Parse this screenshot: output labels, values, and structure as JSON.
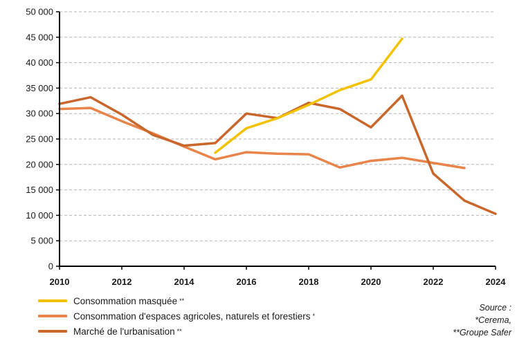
{
  "chart_data": {
    "type": "line",
    "title": "",
    "xlabel": "",
    "ylabel": "",
    "xlim": [
      2010,
      2024
    ],
    "ylim": [
      0,
      50000
    ],
    "x_ticks": [
      2010,
      2012,
      2014,
      2016,
      2018,
      2020,
      2022,
      2024
    ],
    "y_ticks": [
      0,
      5000,
      10000,
      15000,
      20000,
      25000,
      30000,
      35000,
      40000,
      45000,
      50000
    ],
    "x_tick_labels": [
      "2010",
      "2012",
      "2014",
      "2016",
      "2018",
      "2020",
      "2022",
      "2024"
    ],
    "y_tick_labels": [
      "0",
      "5 000",
      "10 000",
      "15 000",
      "20 000",
      "25 000",
      "30 000",
      "35 000",
      "40 000",
      "45 000",
      "50 000"
    ],
    "grid": "horizontal-dashed",
    "series": [
      {
        "name": "Consommation masquée",
        "marker": "**",
        "color": "#f2c200",
        "x": [
          2015,
          2016,
          2017,
          2018,
          2019,
          2020,
          2021
        ],
        "y": [
          22300,
          27100,
          29100,
          31700,
          34600,
          36700,
          44700
        ]
      },
      {
        "name": "Consommation d'espaces agricoles, naturels et forestiers",
        "marker": "*",
        "color": "#e8834a",
        "x": [
          2010,
          2011,
          2012,
          2013,
          2014,
          2015,
          2016,
          2017,
          2018,
          2019,
          2020,
          2021,
          2022,
          2023
        ],
        "y": [
          30900,
          31100,
          28500,
          26100,
          23500,
          21000,
          22400,
          22100,
          22000,
          19400,
          20700,
          21300,
          20300,
          19300
        ]
      },
      {
        "name": "Marché de l'urbanisation",
        "marker": "**",
        "color": "#c8662b",
        "x": [
          2010,
          2011,
          2012,
          2013,
          2014,
          2015,
          2016,
          2017,
          2018,
          2019,
          2020,
          2021,
          2022,
          2023,
          2024
        ],
        "y": [
          31900,
          33200,
          29800,
          25800,
          23700,
          24200,
          30000,
          29100,
          32100,
          30900,
          27300,
          33500,
          18200,
          12900,
          10300
        ]
      }
    ],
    "source_lines": [
      "Source :",
      "*Cerema,",
      "**Groupe Safer"
    ]
  }
}
